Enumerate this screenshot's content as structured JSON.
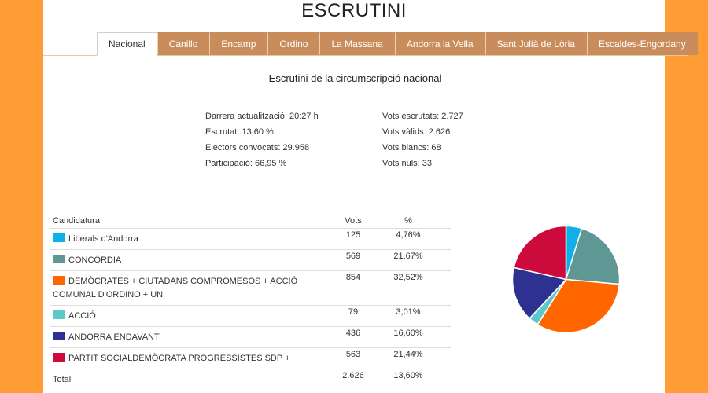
{
  "title": "ESCRUTINI",
  "tabs": [
    "Nacional",
    "Canillo",
    "Encamp",
    "Ordino",
    "La Massana",
    "Andorra la Vella",
    "Sant Julià de Lòria",
    "Escaldes-Engordany"
  ],
  "subtitle": "Escrutini de la circumscripció nacional",
  "stats_left": [
    "Darrera actualització: 20:27 h",
    "Escrutat: 13,60 %",
    "Electors convocats: 29.958",
    "Participació: 66,95 %"
  ],
  "stats_right": [
    "Vots escrutats: 2.727",
    "Vots vàlids: 2.626",
    "Vots blancs: 68",
    "Vots nuls: 33"
  ],
  "table": {
    "headers": [
      "Candidatura",
      "Vots",
      "%"
    ],
    "total": {
      "label": "Total",
      "votes": "2.626",
      "percent": "13,60%"
    }
  },
  "chart_data": {
    "type": "pie",
    "title": "",
    "series": [
      {
        "name": "Liberals d'Andorra",
        "value": 125,
        "display_votes": "125",
        "percent": "4,76%",
        "color": "#0fb0e8"
      },
      {
        "name": "CONCÒRDIA",
        "value": 569,
        "display_votes": "569",
        "percent": "21,67%",
        "color": "#5f9794"
      },
      {
        "name": "DEMÒCRATES + CIUTADANS COMPROMESOS + ACCIÓ COMUNAL D'ORDINO + UN",
        "value": 854,
        "display_votes": "854",
        "percent": "32,52%",
        "color": "#ff6600"
      },
      {
        "name": "ACCIÓ",
        "value": 79,
        "display_votes": "79",
        "percent": "3,01%",
        "color": "#5bc8cc"
      },
      {
        "name": "ANDORRA ENDAVANT",
        "value": 436,
        "display_votes": "436",
        "percent": "16,60%",
        "color": "#2e3092"
      },
      {
        "name": "PARTIT SOCIALDEMÒCRATA PROGRESSISTES SDP +",
        "value": 563,
        "display_votes": "563",
        "percent": "21,44%",
        "color": "#cc0a3c"
      }
    ]
  }
}
